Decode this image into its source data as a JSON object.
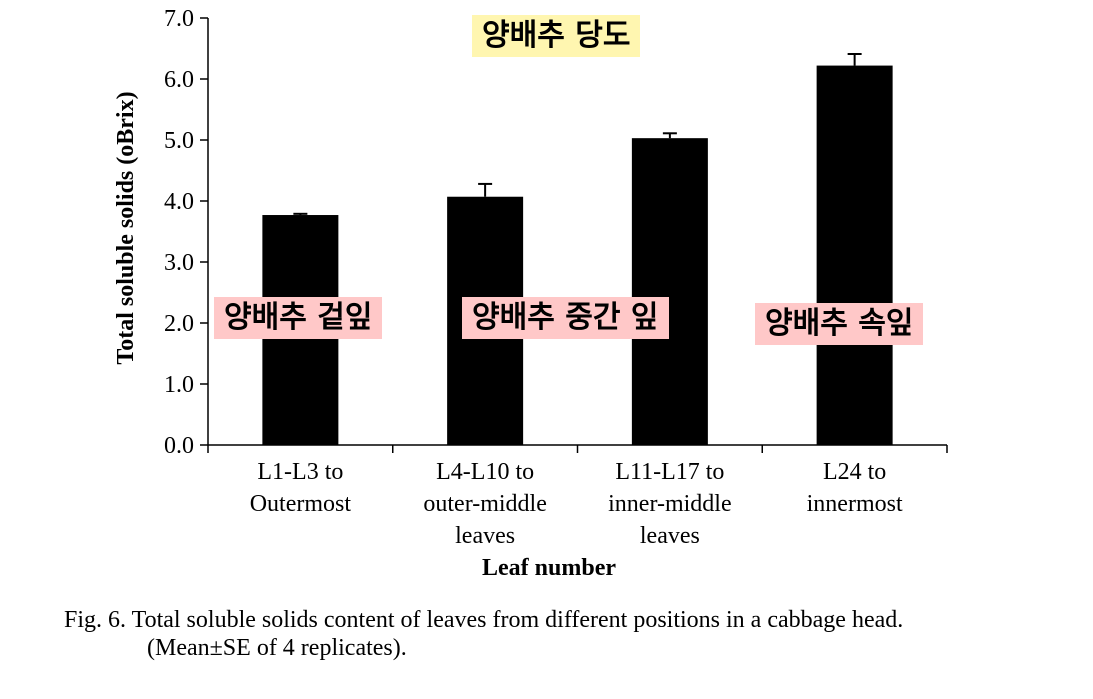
{
  "chart_data": {
    "type": "bar",
    "categories": [
      [
        "L1-L3 to",
        "Outermost"
      ],
      [
        "L4-L10 to",
        "outer-middle",
        "leaves"
      ],
      [
        "L11-L17 to",
        "inner-middle",
        "leaves"
      ],
      [
        "L24 to",
        "innermost"
      ]
    ],
    "values": [
      3.77,
      4.07,
      5.03,
      6.22
    ],
    "errors": [
      0.02,
      0.21,
      0.08,
      0.19
    ],
    "xlabel": "Leaf number",
    "ylabel": "Total soluble solids (oBrix)",
    "ylim": [
      0,
      7
    ],
    "yticks": [
      "0.0",
      "1.0",
      "2.0",
      "3.0",
      "4.0",
      "5.0",
      "6.0",
      "7.0"
    ],
    "grid": false,
    "bar_color": "#000000"
  },
  "annotations": {
    "title": "양배추 당도",
    "outer": "양배추 겉잎",
    "middle": "양배추 중간 잎",
    "inner": "양배추 속잎",
    "title_bg": "#fff6b0",
    "label_bg": "#ffc8c8"
  },
  "caption": {
    "line1": "Fig. 6. Total soluble solids content of leaves from different positions in a cabbage head.",
    "line2": "(Mean±SE of 4 replicates)."
  }
}
